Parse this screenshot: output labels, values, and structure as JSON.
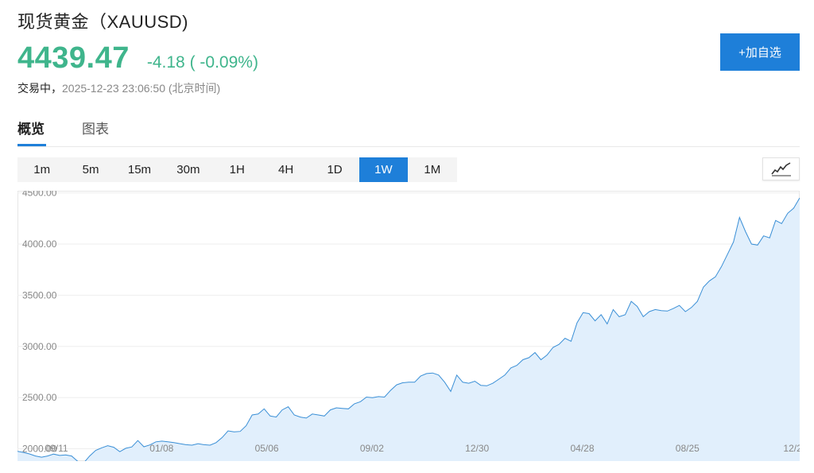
{
  "header": {
    "title": "现货黄金（XAUUSD)",
    "price": "4439.47",
    "change": "-4.18 ( -0.09%)",
    "status_label": "交易中，",
    "timestamp": "2025-12-23 23:06:50 (北京时间)",
    "add_button_label": "+加自选"
  },
  "tabs": [
    {
      "label": "概览",
      "active": true
    },
    {
      "label": "图表",
      "active": false
    }
  ],
  "intervals": [
    {
      "label": "1m",
      "active": false
    },
    {
      "label": "5m",
      "active": false
    },
    {
      "label": "15m",
      "active": false
    },
    {
      "label": "30m",
      "active": false
    },
    {
      "label": "1H",
      "active": false
    },
    {
      "label": "4H",
      "active": false
    },
    {
      "label": "1D",
      "active": false
    },
    {
      "label": "1W",
      "active": true
    },
    {
      "label": "1M",
      "active": false
    }
  ],
  "chart_toggle_icon": "line-chart-icon",
  "colors": {
    "accent": "#1e7fd9",
    "price_green": "#3fb58c",
    "line": "#3a8fd6",
    "area_fill": "#e1effc"
  },
  "chart_data": {
    "type": "area",
    "title": "",
    "xlabel": "",
    "ylabel": "",
    "ylim": [
      1880,
      4520
    ],
    "y_ticks": [
      "2000.00",
      "2500.00",
      "3000.00",
      "3500.00",
      "4000.00",
      "4500.00"
    ],
    "x_ticks": [
      "09/11",
      "01/08",
      "05/06",
      "09/02",
      "12/30",
      "04/28",
      "08/25",
      "12/2"
    ],
    "grid": true,
    "series": [
      {
        "values": [
          1975,
          1965,
          1950,
          1930,
          1918,
          1930,
          1948,
          1935,
          1940,
          1930,
          1878,
          1862,
          1930,
          1985,
          2010,
          2030,
          2015,
          1972,
          2005,
          2018,
          2080,
          2020,
          2038,
          2068,
          2075,
          2068,
          2060,
          2050,
          2040,
          2035,
          2050,
          2040,
          2035,
          2060,
          2110,
          2175,
          2165,
          2170,
          2225,
          2330,
          2340,
          2390,
          2320,
          2310,
          2380,
          2410,
          2330,
          2310,
          2300,
          2340,
          2330,
          2320,
          2380,
          2400,
          2395,
          2390,
          2440,
          2460,
          2505,
          2500,
          2510,
          2505,
          2570,
          2625,
          2645,
          2650,
          2650,
          2710,
          2735,
          2740,
          2720,
          2650,
          2560,
          2720,
          2650,
          2640,
          2660,
          2620,
          2615,
          2640,
          2680,
          2720,
          2790,
          2815,
          2870,
          2890,
          2940,
          2870,
          2915,
          2990,
          3020,
          3080,
          3050,
          3230,
          3330,
          3320,
          3250,
          3310,
          3220,
          3360,
          3290,
          3310,
          3440,
          3390,
          3290,
          3340,
          3360,
          3350,
          3345,
          3370,
          3400,
          3340,
          3380,
          3440,
          3580,
          3640,
          3680,
          3780,
          3900,
          4020,
          4260,
          4120,
          4000,
          3990,
          4080,
          4060,
          4230,
          4200,
          4300,
          4350,
          4450
        ]
      }
    ]
  }
}
